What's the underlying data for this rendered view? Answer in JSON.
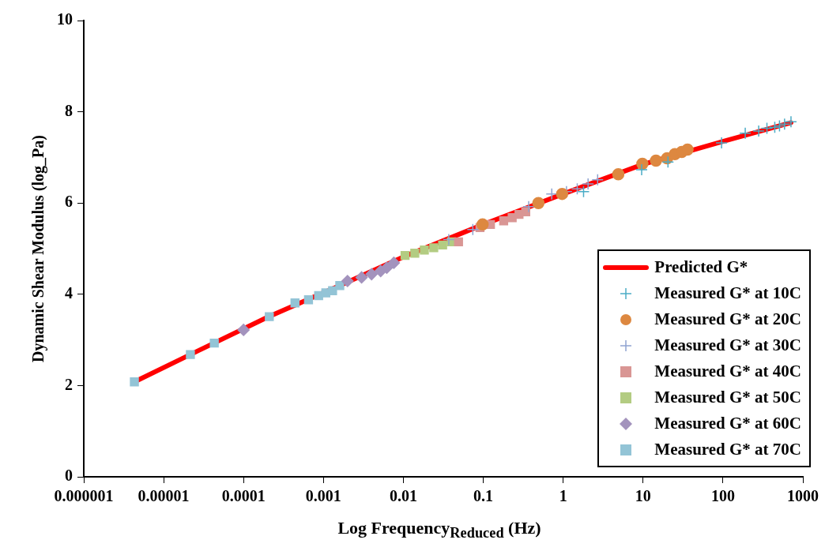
{
  "chart_data": {
    "type": "scatter",
    "xlabel": "Log Frequency$_{Reduced}$ (Hz)",
    "ylabel": "Dynamic Shear Modulus (log_Pa)",
    "log": "x",
    "xlim": [
      1e-06,
      1000
    ],
    "xticks": [
      {
        "value": 1e-06,
        "label": "0.000001"
      },
      {
        "value": 1e-05,
        "label": "0.00001"
      },
      {
        "value": 0.0001,
        "label": "0.0001"
      },
      {
        "value": 0.001,
        "label": "0.001"
      },
      {
        "value": 0.01,
        "label": "0.01"
      },
      {
        "value": 0.1,
        "label": "0.1"
      },
      {
        "value": 1,
        "label": "1"
      },
      {
        "value": 10,
        "label": "10"
      },
      {
        "value": 100,
        "label": "100"
      },
      {
        "value": 1000,
        "label": "1000"
      }
    ],
    "ylim": [
      0,
      10
    ],
    "yticks": [
      0,
      2,
      4,
      6,
      8,
      10
    ],
    "grid": false,
    "legend": "bottom right",
    "series": [
      {
        "name": "Predicted G*",
        "type": "line",
        "marker": "none",
        "color": "#ff0000",
        "x": [
          4.3e-06,
          2.16e-05,
          0.0002,
          0.0016,
          0.01,
          0.1,
          1,
          10,
          100,
          710
        ],
        "values": [
          2.08,
          2.68,
          3.5,
          4.19,
          4.82,
          5.53,
          6.2,
          6.85,
          7.35,
          7.76
        ]
      },
      {
        "name": "Measured G* at 10C",
        "marker": "cross",
        "color": "#4bacc6",
        "x": [
          1.8,
          9.6,
          20.5,
          96,
          190,
          280,
          355,
          445,
          510,
          590,
          710
        ],
        "values": [
          6.25,
          6.73,
          6.9,
          7.32,
          7.53,
          7.58,
          7.64,
          7.66,
          7.69,
          7.73,
          7.78
        ]
      },
      {
        "name": "Measured G* at 20C",
        "marker": "circle",
        "color": "#dd8840",
        "x": [
          0.098,
          0.49,
          0.97,
          4.9,
          9.8,
          14.5,
          20,
          25,
          30.5,
          36
        ],
        "values": [
          5.53,
          6.0,
          6.2,
          6.63,
          6.86,
          6.93,
          6.98,
          7.07,
          7.12,
          7.17
        ]
      },
      {
        "name": "Measured G* at 30C",
        "marker": "cross",
        "color": "#8fa3d0",
        "x": [
          0.037,
          0.074,
          0.37,
          0.72,
          1.1,
          1.5,
          2.05,
          2.7
        ],
        "values": [
          5.2,
          5.42,
          5.92,
          6.2,
          6.25,
          6.31,
          6.42,
          6.51
        ]
      },
      {
        "name": "Measured G* at 40C",
        "marker": "square",
        "color": "#d99694",
        "x": [
          0.049,
          0.091,
          0.123,
          0.18,
          0.23,
          0.28,
          0.34
        ],
        "values": [
          5.15,
          5.46,
          5.53,
          5.61,
          5.68,
          5.75,
          5.81
        ]
      },
      {
        "name": "Measured G* at 50C",
        "marker": "square",
        "color": "#b3cc82",
        "x": [
          0.0105,
          0.0139,
          0.0183,
          0.024,
          0.031,
          0.04
        ],
        "values": [
          4.85,
          4.9,
          4.97,
          5.02,
          5.08,
          5.15
        ]
      },
      {
        "name": "Measured G* at 60C",
        "marker": "diamond",
        "color": "#a393bd",
        "x": [
          0.0001,
          0.002,
          0.003,
          0.004,
          0.0052,
          0.0062,
          0.0076
        ],
        "values": [
          3.22,
          4.29,
          4.37,
          4.44,
          4.51,
          4.58,
          4.69
        ]
      },
      {
        "name": "Measured G* at 70C",
        "marker": "square",
        "color": "#93c4d6",
        "x": [
          4.3e-06,
          2.16e-05,
          4.3e-05,
          0.00021,
          0.00044,
          0.00065,
          0.00087,
          0.00107,
          0.0013,
          0.0016
        ],
        "values": [
          2.08,
          2.68,
          2.93,
          3.51,
          3.81,
          3.88,
          3.97,
          4.03,
          4.08,
          4.19
        ]
      }
    ]
  }
}
